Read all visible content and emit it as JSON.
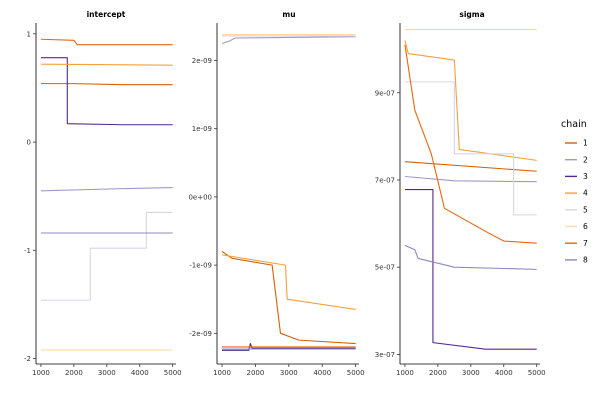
{
  "chart_data": {
    "type": "line",
    "facets": [
      {
        "title": "intercept",
        "ylim": [
          -2.05,
          1.1
        ],
        "y_ticks": [
          {
            "v": 1,
            "label": "1"
          },
          {
            "v": 0,
            "label": "0"
          },
          {
            "v": -1,
            "label": "-1"
          },
          {
            "v": -2,
            "label": "-2"
          }
        ]
      },
      {
        "title": "mu",
        "ylim": [
          -2.45e-09,
          2.55e-09
        ],
        "y_ticks": [
          {
            "v": 2e-09,
            "label": "2e-09"
          },
          {
            "v": 1e-09,
            "label": "1e-09"
          },
          {
            "v": 0,
            "label": "0e+00"
          },
          {
            "v": -1e-09,
            "label": "-1e-09"
          },
          {
            "v": -2e-09,
            "label": "-2e-09"
          }
        ]
      },
      {
        "title": "sigma",
        "ylim": [
          2.78e-07,
          1.06e-06
        ],
        "y_ticks": [
          {
            "v": 9e-07,
            "label": "9e-07"
          },
          {
            "v": 7e-07,
            "label": "7e-07"
          },
          {
            "v": 5e-07,
            "label": "5e-07"
          },
          {
            "v": 3e-07,
            "label": "3e-07"
          }
        ]
      }
    ],
    "xlim": [
      850,
      5100
    ],
    "x_ticks": [
      {
        "v": 1000,
        "label": "1000"
      },
      {
        "v": 2000,
        "label": "2000"
      },
      {
        "v": 3000,
        "label": "3000"
      },
      {
        "v": 4000,
        "label": "4000"
      },
      {
        "v": 5000,
        "label": "5000"
      }
    ],
    "legend": {
      "title": "chain",
      "position": "right",
      "entries": [
        {
          "label": "1",
          "color": "#d95f02"
        },
        {
          "label": "2",
          "color": "#9e9ac8"
        },
        {
          "label": "3",
          "color": "#54278f"
        },
        {
          "label": "4",
          "color": "#f3a13b"
        },
        {
          "label": "5",
          "color": "#d7d4ec"
        },
        {
          "label": "6",
          "color": "#fdd9a6"
        },
        {
          "label": "7",
          "color": "#e6660c"
        },
        {
          "label": "8",
          "color": "#8c89bd"
        }
      ]
    },
    "series": [
      {
        "name": "1",
        "traces": [
          [
            [
              1000,
              0.54
            ],
            [
              2000,
              0.54
            ],
            [
              3500,
              0.53
            ],
            [
              5000,
              0.53
            ]
          ],
          [
            [
              1000,
              -8e-10
            ],
            [
              1300,
              -9e-10
            ],
            [
              2500,
              -1e-09
            ],
            [
              2750,
              -2e-09
            ],
            [
              3300,
              -2.1e-09
            ],
            [
              5000,
              -2.15e-09
            ]
          ],
          [
            [
              1000,
              7.42e-07
            ],
            [
              5000,
              7.2e-07
            ]
          ]
        ]
      },
      {
        "name": "2",
        "traces": [
          [
            [
              1000,
              -0.45
            ],
            [
              3500,
              -0.43
            ],
            [
              5000,
              -0.42
            ]
          ],
          [
            [
              1000,
              2.25e-09
            ],
            [
              1200,
              2.28e-09
            ],
            [
              1400,
              2.33e-09
            ],
            [
              5000,
              2.35e-09
            ]
          ],
          [
            [
              1000,
              7.08e-07
            ],
            [
              2500,
              6.98e-07
            ],
            [
              5000,
              6.96e-07
            ]
          ]
        ]
      },
      {
        "name": "3",
        "traces": [
          [
            [
              1000,
              0.78
            ],
            [
              1800,
              0.78
            ],
            [
              1800,
              0.17
            ],
            [
              3500,
              0.16
            ],
            [
              5000,
              0.16
            ]
          ],
          [
            [
              1000,
              -2.25e-09
            ],
            [
              1800,
              -2.25e-09
            ],
            [
              1850,
              -2.15e-09
            ],
            [
              1900,
              -2.22e-09
            ],
            [
              5000,
              -2.22e-09
            ]
          ],
          [
            [
              1000,
              6.78e-07
            ],
            [
              1850,
              6.78e-07
            ],
            [
              1850,
              3.27e-07
            ],
            [
              3450,
              3.12e-07
            ],
            [
              5000,
              3.12e-07
            ]
          ]
        ]
      },
      {
        "name": "4",
        "traces": [
          [
            [
              1000,
              0.72
            ],
            [
              5000,
              0.71
            ]
          ],
          [
            [
              1000,
              -8.5e-10
            ],
            [
              2900,
              -1e-09
            ],
            [
              2950,
              -1.5e-09
            ],
            [
              5000,
              -1.65e-09
            ]
          ],
          [
            [
              1000,
              1.02e-06
            ],
            [
              1100,
              9.9e-07
            ],
            [
              2500,
              9.75e-07
            ],
            [
              2650,
              7.7e-07
            ],
            [
              5000,
              7.45e-07
            ]
          ]
        ]
      },
      {
        "name": "5",
        "traces": [
          [
            [
              1000,
              -1.46
            ],
            [
              2500,
              -1.46
            ],
            [
              2500,
              -0.98
            ],
            [
              4200,
              -0.98
            ],
            [
              4200,
              -0.65
            ],
            [
              5000,
              -0.65
            ]
          ],
          [
            [
              1000,
              2.36e-09
            ],
            [
              5000,
              2.36e-09
            ]
          ],
          [
            [
              1000,
              9.25e-07
            ],
            [
              2500,
              9.25e-07
            ],
            [
              2500,
              7.6e-07
            ],
            [
              4300,
              7.6e-07
            ],
            [
              4300,
              6.2e-07
            ],
            [
              5000,
              6.2e-07
            ]
          ]
        ]
      },
      {
        "name": "6",
        "traces": [
          [
            [
              1000,
              -1.92
            ],
            [
              5000,
              -1.92
            ]
          ],
          [
            [
              1000,
              2.38e-09
            ],
            [
              5000,
              2.38e-09
            ]
          ],
          [
            [
              1000,
              1.045e-06
            ],
            [
              5000,
              1.045e-06
            ]
          ]
        ]
      },
      {
        "name": "7",
        "traces": [
          [
            [
              1000,
              0.95
            ],
            [
              2000,
              0.94
            ],
            [
              2100,
              0.9
            ],
            [
              5000,
              0.9
            ]
          ],
          [
            [
              1000,
              -2.2e-09
            ],
            [
              5000,
              -2.2e-09
            ]
          ],
          [
            [
              1000,
              1.01e-06
            ],
            [
              1300,
              8.6e-07
            ],
            [
              1800,
              7.6e-07
            ],
            [
              2200,
              6.35e-07
            ],
            [
              3500,
              5.8e-07
            ],
            [
              4000,
              5.6e-07
            ],
            [
              5000,
              5.55e-07
            ]
          ]
        ]
      },
      {
        "name": "8",
        "traces": [
          [
            [
              1000,
              -0.84
            ],
            [
              5000,
              -0.84
            ]
          ],
          [
            [
              1000,
              -2.23e-09
            ],
            [
              5000,
              -2.23e-09
            ]
          ],
          [
            [
              1000,
              5.5e-07
            ],
            [
              1300,
              5.4e-07
            ],
            [
              1400,
              5.2e-07
            ],
            [
              2500,
              5e-07
            ],
            [
              5000,
              4.95e-07
            ]
          ]
        ]
      }
    ]
  }
}
